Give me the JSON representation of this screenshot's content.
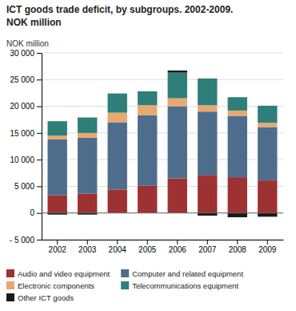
{
  "chart_data": {
    "type": "bar",
    "title": "ICT goods trade deficit, by subgroups. 2002-2009.",
    "subtitle": "NOK million",
    "ylabel": "NOK million",
    "categories": [
      "2002",
      "2003",
      "2004",
      "2005",
      "2006",
      "2007",
      "2008",
      "2009"
    ],
    "series": [
      {
        "name": "Audio and video equipment",
        "color": "#9e3132",
        "values": [
          3300,
          3600,
          4400,
          5100,
          6500,
          7000,
          6700,
          6100
        ]
      },
      {
        "name": "Computer and related equipment",
        "color": "#4e6d8c",
        "values": [
          10500,
          10500,
          12600,
          13200,
          13500,
          12000,
          11500,
          10000
        ]
      },
      {
        "name": "Electronic components",
        "color": "#e8a870",
        "values": [
          700,
          900,
          1800,
          1900,
          1500,
          1200,
          1000,
          800
        ]
      },
      {
        "name": "Telecommunications equipment",
        "color": "#2e7f7a",
        "values": [
          2700,
          2900,
          3600,
          2600,
          4800,
          5000,
          2500,
          3200
        ]
      },
      {
        "name": "Other ICT goods",
        "color": "#1a1a1a",
        "values": [
          -300,
          -300,
          0,
          0,
          400,
          -500,
          -800,
          -700
        ]
      }
    ],
    "stacked": true,
    "ylim": [
      -5000,
      30000
    ],
    "yticks": [
      {
        "value": -5000,
        "label": "- 5 000"
      },
      0,
      {
        "value": 5000,
        "label": "5 000"
      },
      {
        "value": 10000,
        "label": "10 000"
      },
      {
        "value": 15000,
        "label": "15 000"
      },
      {
        "value": 20000,
        "label": "20 000"
      },
      {
        "value": 25000,
        "label": "25 000"
      },
      {
        "value": 30000,
        "label": "30 000"
      }
    ],
    "grid": true,
    "legend": "bottom"
  }
}
